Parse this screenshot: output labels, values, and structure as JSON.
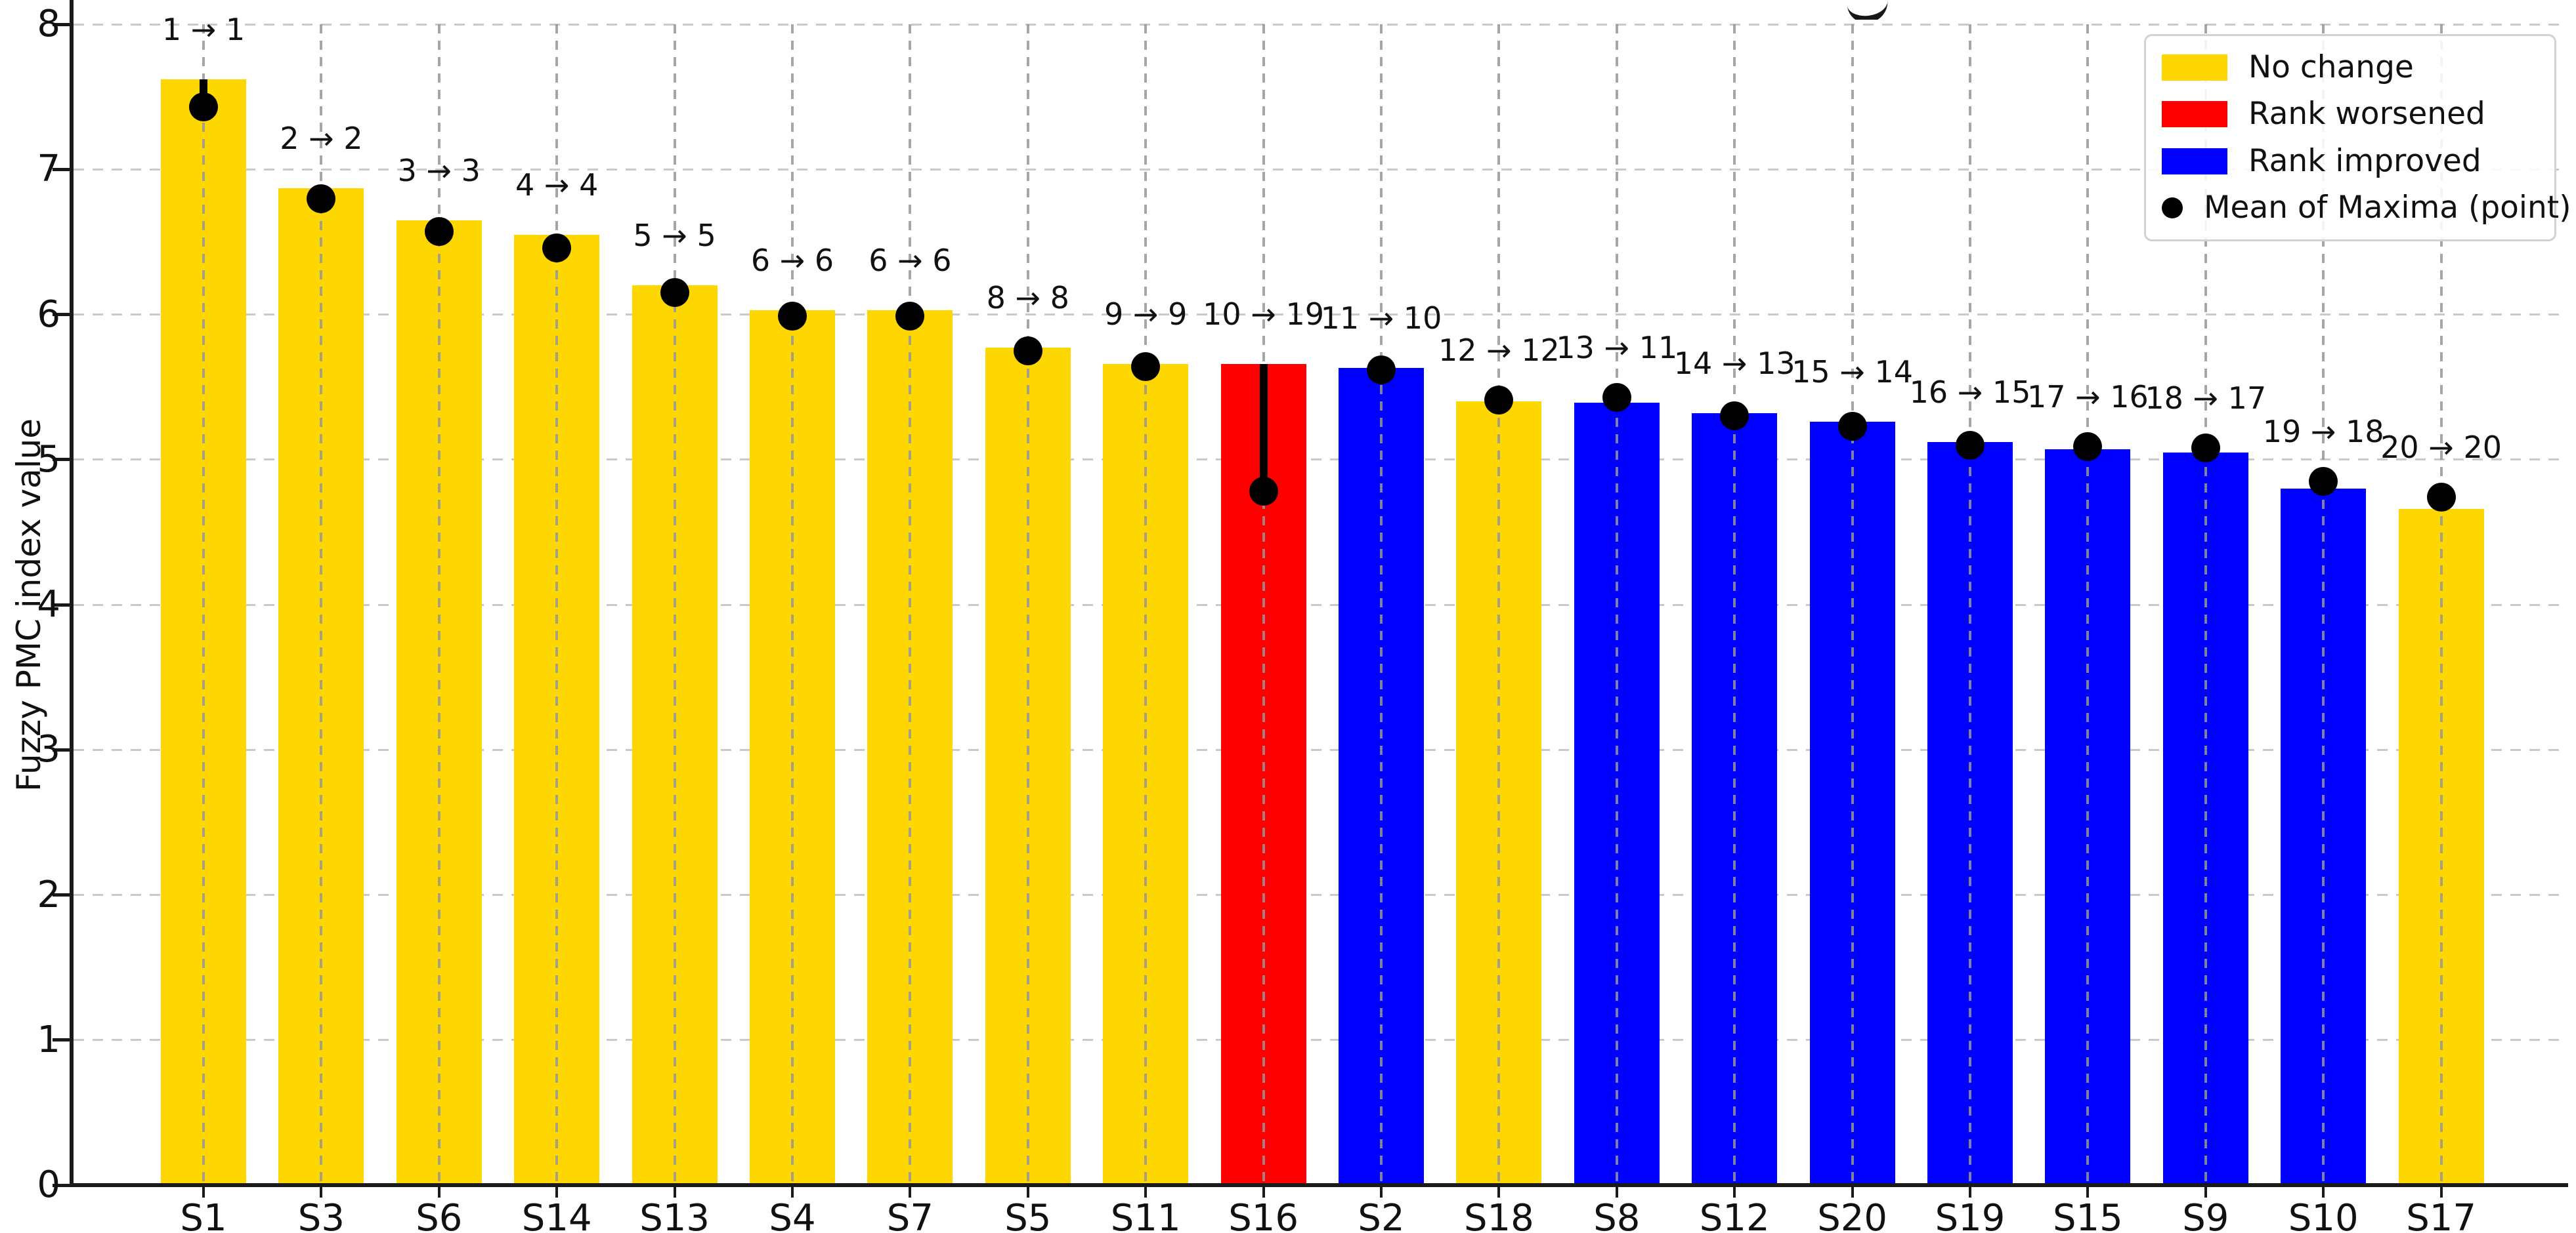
{
  "figure": {
    "ylabel": "Fuzzy PMC index value",
    "background_color": "#ffffff",
    "note_title_cropped": "partial glyph of cropped title visible at top center"
  },
  "legend": {
    "position": "upper right",
    "items": [
      {
        "label": "No change",
        "swatch": "patch",
        "color": "#FFD700"
      },
      {
        "label": "Rank worsened",
        "swatch": "patch",
        "color": "#FF0000"
      },
      {
        "label": "Rank improved",
        "swatch": "patch",
        "color": "#0000FF"
      },
      {
        "label": "Mean of Maxima (point)",
        "swatch": "dot",
        "color": "#000000"
      }
    ]
  },
  "chart_data": {
    "type": "bar",
    "title": "",
    "xlabel": "",
    "ylabel": "Fuzzy PMC index value",
    "ylim": [
      0,
      8
    ],
    "yticks": [
      0,
      1,
      2,
      3,
      4,
      5,
      6,
      7,
      8
    ],
    "grid": "dashed horizontal gridlines behind bars; dashed vertical guide at each bar center over bars",
    "legend_position": "upper right",
    "categories": [
      "S1",
      "S3",
      "S6",
      "S14",
      "S13",
      "S4",
      "S7",
      "S5",
      "S11",
      "S16",
      "S2",
      "S18",
      "S8",
      "S12",
      "S20",
      "S19",
      "S15",
      "S9",
      "S10",
      "S17"
    ],
    "series": [
      {
        "name": "Fuzzy PMC index value (bar)",
        "values": [
          7.62,
          6.87,
          6.65,
          6.55,
          6.2,
          6.03,
          6.03,
          5.77,
          5.66,
          5.66,
          5.63,
          5.4,
          5.39,
          5.32,
          5.26,
          5.12,
          5.07,
          5.05,
          4.8,
          4.66
        ]
      },
      {
        "name": "Mean of Maxima (point)",
        "values": [
          7.43,
          6.8,
          6.57,
          6.46,
          6.15,
          5.99,
          5.99,
          5.75,
          5.64,
          4.78,
          5.62,
          5.41,
          5.43,
          5.3,
          5.23,
          5.1,
          5.09,
          5.08,
          4.85,
          4.74
        ]
      }
    ],
    "bar_colors": [
      "#FFD700",
      "#FFD700",
      "#FFD700",
      "#FFD700",
      "#FFD700",
      "#FFD700",
      "#FFD700",
      "#FFD700",
      "#FFD700",
      "#FF0000",
      "#0000FF",
      "#FFD700",
      "#0000FF",
      "#0000FF",
      "#0000FF",
      "#0000FF",
      "#0000FF",
      "#0000FF",
      "#0000FF",
      "#FFD700"
    ],
    "annotations": [
      "1 → 1",
      "2 → 2",
      "3 → 3",
      "4 → 4",
      "5 → 5",
      "6 → 6",
      "6 → 6",
      "8 → 8",
      "9 → 9",
      "10 → 19",
      "11 → 10",
      "12 → 12",
      "13 → 11",
      "14 → 13",
      "15 → 14",
      "16 → 15",
      "17 → 16",
      "18 → 17",
      "19 → 18",
      "20 → 20"
    ],
    "color_legend": {
      "#FFD700": "No change",
      "#FF0000": "Rank worsened",
      "#0000FF": "Rank improved"
    }
  }
}
